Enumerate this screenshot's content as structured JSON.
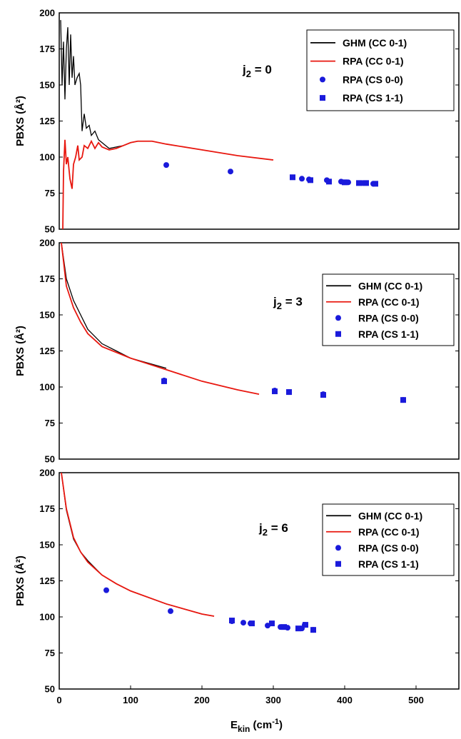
{
  "chart_data": [
    {
      "type": "line",
      "annotation": [
        "j",
        "2",
        " = 0"
      ],
      "ylabel": "PBXS (Å²)",
      "xlim": [
        0,
        560
      ],
      "ylim": [
        50,
        200
      ],
      "yticks": [
        50,
        75,
        100,
        125,
        150,
        175,
        200
      ],
      "series": [
        {
          "name": "GHM  (CC 0-1)",
          "color": "#000000",
          "marker": "line",
          "x": [
            2,
            4,
            6,
            8,
            10,
            12,
            14,
            16,
            18,
            20,
            22,
            25,
            28,
            30,
            32,
            35,
            38,
            42,
            45,
            50,
            55,
            60,
            65,
            70,
            80,
            90,
            100,
            110,
            120,
            130
          ],
          "values": [
            195,
            150,
            180,
            140,
            175,
            190,
            150,
            185,
            155,
            170,
            150,
            155,
            158,
            150,
            118,
            130,
            120,
            122,
            115,
            118,
            112,
            110,
            108,
            106,
            107,
            108,
            110,
            111,
            111,
            111
          ]
        },
        {
          "name": "RPA  (CC 0-1)",
          "color": "#e8170f",
          "marker": "line",
          "x": [
            5,
            6,
            8,
            10,
            12,
            15,
            18,
            20,
            23,
            26,
            28,
            32,
            35,
            40,
            45,
            50,
            55,
            60,
            70,
            80,
            90,
            100,
            110,
            130,
            150,
            200,
            250,
            300
          ],
          "values": [
            50,
            90,
            112,
            95,
            100,
            85,
            78,
            95,
            100,
            108,
            98,
            100,
            108,
            106,
            111,
            106,
            110,
            107,
            105,
            106,
            108,
            110,
            111,
            111,
            109,
            105,
            101,
            98
          ]
        },
        {
          "name": "RPA  (CS 0-0)",
          "color": "#1a1adb",
          "marker": "circle",
          "x": [
            150,
            240,
            340,
            350,
            375,
            395,
            405,
            425,
            440
          ],
          "values": [
            94.5,
            90,
            85,
            84.5,
            84,
            83,
            82.5,
            82,
            81.5
          ]
        },
        {
          "name": "RPA  (CS 1-1)",
          "color": "#1a1adb",
          "marker": "square",
          "x": [
            327,
            352,
            378,
            400,
            420,
            430,
            443
          ],
          "values": [
            86,
            84,
            83,
            82.5,
            82,
            82,
            81.5
          ]
        }
      ]
    },
    {
      "type": "line",
      "annotation": [
        "j",
        "2",
        " = 3"
      ],
      "ylabel": "PBXS (Å²)",
      "xlim": [
        0,
        560
      ],
      "ylim": [
        50,
        200
      ],
      "yticks": [
        50,
        75,
        100,
        125,
        150,
        175,
        200
      ],
      "series": [
        {
          "name": "GHM  (CC 0-1)",
          "color": "#000000",
          "marker": "line",
          "x": [
            3,
            10,
            20,
            30,
            40,
            60,
            80,
            100,
            150
          ],
          "values": [
            200,
            175,
            160,
            150,
            140,
            130,
            125,
            120,
            113
          ]
        },
        {
          "name": "RPA  (CC 0-1)",
          "color": "#e8170f",
          "marker": "line",
          "x": [
            3,
            10,
            20,
            30,
            40,
            60,
            80,
            100,
            150,
            200,
            250,
            280
          ],
          "values": [
            200,
            170,
            155,
            145,
            137,
            128,
            124,
            120,
            112,
            104,
            98,
            95
          ]
        },
        {
          "name": "RPA  (CS 0-0)",
          "color": "#1a1adb",
          "marker": "circle",
          "x": [
            147,
            302,
            322,
            370,
            482
          ],
          "values": [
            104.5,
            97.5,
            96.5,
            95,
            91
          ]
        },
        {
          "name": "RPA  (CS 1-1)",
          "color": "#1a1adb",
          "marker": "square",
          "x": [
            147,
            302,
            322,
            370,
            482
          ],
          "values": [
            104,
            97,
            96.5,
            94.5,
            91
          ]
        }
      ]
    },
    {
      "type": "line",
      "annotation": [
        "j",
        "2",
        " = 6"
      ],
      "ylabel": "PBXS (Å²)",
      "xlabel": [
        "E",
        "kin",
        " (cm",
        "-1",
        ")"
      ],
      "xlim": [
        0,
        560
      ],
      "ylim": [
        50,
        200
      ],
      "xticks": [
        0,
        100,
        200,
        300,
        400,
        500
      ],
      "yticks": [
        50,
        75,
        100,
        125,
        150,
        175,
        200
      ],
      "series": [
        {
          "name": "GHM  (CC 0-1)",
          "color": "#000000",
          "marker": "line",
          "x": [
            3,
            10,
            20,
            30,
            40,
            60,
            80,
            100,
            150,
            200,
            217
          ],
          "values": [
            200,
            174,
            154,
            145,
            139,
            129,
            123,
            118,
            109,
            102,
            100.5
          ]
        },
        {
          "name": "RPA  (CC 0-1)",
          "color": "#e8170f",
          "marker": "line",
          "x": [
            3,
            10,
            20,
            30,
            40,
            60,
            80,
            100,
            150,
            200,
            217
          ],
          "values": [
            200,
            175,
            155,
            145,
            138,
            129,
            123,
            118,
            109,
            102,
            100.5
          ]
        },
        {
          "name": "RPA  (CS 0-0)",
          "color": "#1a1adb",
          "marker": "circle",
          "x": [
            66,
            156,
            242,
            258,
            268,
            292,
            310,
            320,
            340,
            344,
            356
          ],
          "values": [
            118.5,
            104,
            97,
            96,
            95.5,
            94,
            93,
            92.5,
            92,
            94.5,
            91
          ]
        },
        {
          "name": "RPA  (CS 1-1)",
          "color": "#1a1adb",
          "marker": "square",
          "x": [
            242,
            270,
            298,
            315,
            335,
            345,
            356
          ],
          "values": [
            97.5,
            95.5,
            95.5,
            93,
            92,
            94.5,
            91
          ]
        }
      ]
    }
  ]
}
